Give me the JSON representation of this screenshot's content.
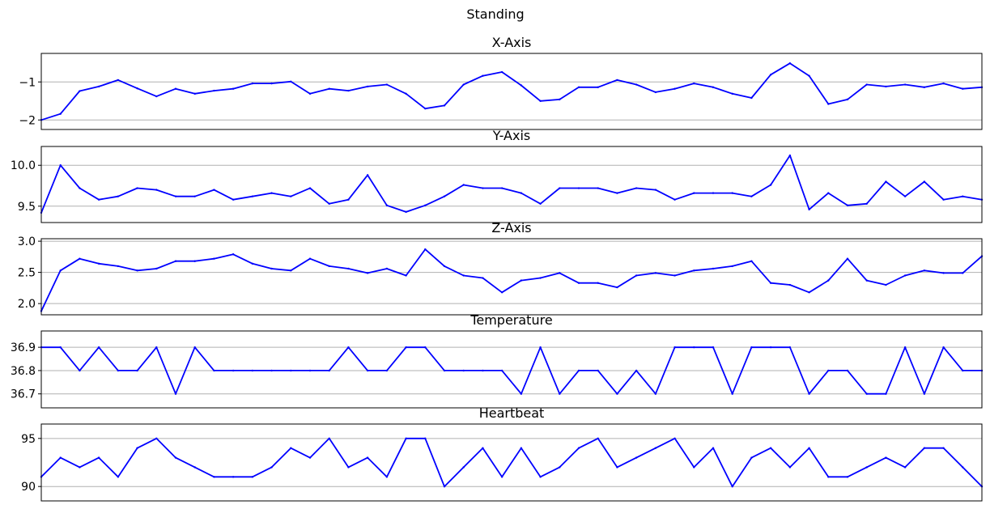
{
  "figure_title": "Standing",
  "line_color": "#0000ff",
  "grid_color": "#b0b0b0",
  "chart_data": [
    {
      "type": "line",
      "title": "X-Axis",
      "grid": "horizontal",
      "ylim": [
        -2.25,
        -0.25
      ],
      "yticks": [
        -2,
        -1
      ],
      "ytick_labels": [
        "−2",
        "−1"
      ],
      "values": [
        -2.0,
        -1.84,
        -1.24,
        -1.12,
        -0.95,
        -1.17,
        -1.38,
        -1.18,
        -1.31,
        -1.23,
        -1.18,
        -1.04,
        -1.04,
        -0.99,
        -1.31,
        -1.18,
        -1.23,
        -1.12,
        -1.07,
        -1.31,
        -1.7,
        -1.62,
        -1.07,
        -0.84,
        -0.74,
        -1.09,
        -1.5,
        -1.46,
        -1.14,
        -1.14,
        -0.95,
        -1.07,
        -1.27,
        -1.18,
        -1.04,
        -1.14,
        -1.31,
        -1.42,
        -0.81,
        -0.51,
        -0.84,
        -1.58,
        -1.46,
        -1.07,
        -1.12,
        -1.07,
        -1.14,
        -1.04,
        -1.18,
        -1.14
      ]
    },
    {
      "type": "line",
      "title": "Y-Axis",
      "grid": "horizontal",
      "ylim": [
        9.3,
        10.23
      ],
      "yticks": [
        9.5,
        10.0
      ],
      "ytick_labels": [
        "9.5",
        "10.0"
      ],
      "values": [
        9.42,
        10.0,
        9.72,
        9.58,
        9.62,
        9.72,
        9.7,
        9.62,
        9.62,
        9.7,
        9.58,
        9.62,
        9.66,
        9.62,
        9.72,
        9.53,
        9.58,
        9.88,
        9.51,
        9.43,
        9.51,
        9.62,
        9.76,
        9.72,
        9.72,
        9.66,
        9.53,
        9.72,
        9.72,
        9.72,
        9.66,
        9.72,
        9.7,
        9.58,
        9.66,
        9.66,
        9.66,
        9.62,
        9.76,
        10.12,
        9.46,
        9.66,
        9.51,
        9.53,
        9.8,
        9.62,
        9.8,
        9.58,
        9.62,
        9.58
      ]
    },
    {
      "type": "line",
      "title": "Z-Axis",
      "grid": "horizontal",
      "ylim": [
        1.82,
        3.04
      ],
      "yticks": [
        2.0,
        2.5,
        3.0
      ],
      "ytick_labels": [
        "2.0",
        "2.5",
        "3.0"
      ],
      "values": [
        1.88,
        2.53,
        2.72,
        2.64,
        2.6,
        2.53,
        2.56,
        2.68,
        2.68,
        2.72,
        2.79,
        2.64,
        2.56,
        2.53,
        2.72,
        2.6,
        2.56,
        2.49,
        2.56,
        2.45,
        2.87,
        2.6,
        2.45,
        2.41,
        2.18,
        2.37,
        2.41,
        2.49,
        2.33,
        2.33,
        2.26,
        2.45,
        2.49,
        2.45,
        2.53,
        2.56,
        2.6,
        2.68,
        2.33,
        2.3,
        2.18,
        2.37,
        2.72,
        2.37,
        2.3,
        2.45,
        2.53,
        2.49,
        2.49,
        2.76
      ]
    },
    {
      "type": "line",
      "title": "Temperature",
      "grid": "horizontal",
      "ylim": [
        36.64,
        36.97
      ],
      "yticks": [
        36.7,
        36.8,
        36.9
      ],
      "ytick_labels": [
        "36.7",
        "36.8",
        "36.9"
      ],
      "values": [
        36.9,
        36.9,
        36.8,
        36.9,
        36.8,
        36.8,
        36.9,
        36.7,
        36.9,
        36.8,
        36.8,
        36.8,
        36.8,
        36.8,
        36.8,
        36.8,
        36.9,
        36.8,
        36.8,
        36.9,
        36.9,
        36.8,
        36.8,
        36.8,
        36.8,
        36.7,
        36.9,
        36.7,
        36.8,
        36.8,
        36.7,
        36.8,
        36.7,
        36.9,
        36.9,
        36.9,
        36.7,
        36.9,
        36.9,
        36.9,
        36.7,
        36.8,
        36.8,
        36.7,
        36.7,
        36.9,
        36.7,
        36.9,
        36.8,
        36.8
      ]
    },
    {
      "type": "line",
      "title": "Heartbeat",
      "grid": "horizontal",
      "ylim": [
        88.5,
        96.5
      ],
      "yticks": [
        90,
        95
      ],
      "ytick_labels": [
        "90",
        "95"
      ],
      "values": [
        91,
        93,
        92,
        93,
        91,
        94,
        95,
        93,
        92,
        91,
        91,
        91,
        92,
        94,
        93,
        95,
        92,
        93,
        91,
        95,
        95,
        90,
        92,
        94,
        91,
        94,
        91,
        92,
        94,
        95,
        92,
        93,
        94,
        95,
        92,
        94,
        90,
        93,
        94,
        92,
        94,
        91,
        91,
        92,
        93,
        92,
        94,
        94,
        92,
        90
      ]
    }
  ]
}
